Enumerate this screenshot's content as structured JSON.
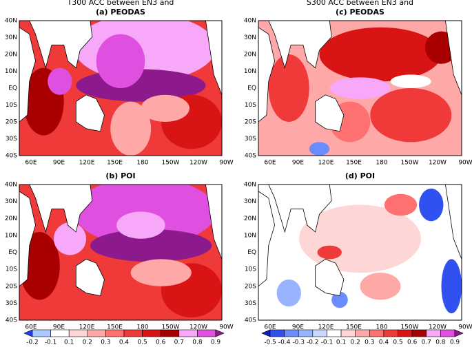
{
  "panels": [
    {
      "title": "T300 ACC between EN3 and",
      "label": "(a) PEODAS"
    },
    {
      "title": "S300 ACC between EN3 and",
      "label": "(c) PEODAS"
    },
    {
      "label": "(b) POI"
    },
    {
      "label": "(d) POI"
    }
  ],
  "lat_labels": [
    "40N",
    "30N",
    "20N",
    "10N",
    "EQ",
    "10S",
    "20S",
    "30S",
    "40S"
  ],
  "lon_labels": [
    "60E",
    "90E",
    "120E",
    "150E",
    "180",
    "150W",
    "120W",
    "90W"
  ],
  "colorbars": [
    {
      "labels": [
        -0.2,
        -0.1,
        0.1,
        0.2,
        0.3,
        0.4,
        0.5,
        0.6,
        0.7,
        0.8,
        0.9
      ],
      "colors": [
        "#2040f0",
        "#a8c8ff",
        "#ffffff",
        "#ffd6d6",
        "#ffa8a8",
        "#ff7070",
        "#f03a3a",
        "#d81414",
        "#a80000",
        "#f8a8f8",
        "#e050e0",
        "#8c1a8c"
      ]
    },
    {
      "labels": [
        -0.5,
        -0.4,
        -0.3,
        -0.2,
        -0.1,
        0.1,
        0.2,
        0.3,
        0.4,
        0.5,
        0.6,
        0.7,
        0.8,
        0.9
      ],
      "colors": [
        "#1020c0",
        "#3050f0",
        "#6a8cff",
        "#98b4ff",
        "#c8d8ff",
        "#ffffff",
        "#ffd6d6",
        "#ffa8a8",
        "#ff7070",
        "#f03a3a",
        "#d81414",
        "#a80000",
        "#f8a8f8",
        "#e050e0",
        "#8c1a8c"
      ]
    }
  ]
}
